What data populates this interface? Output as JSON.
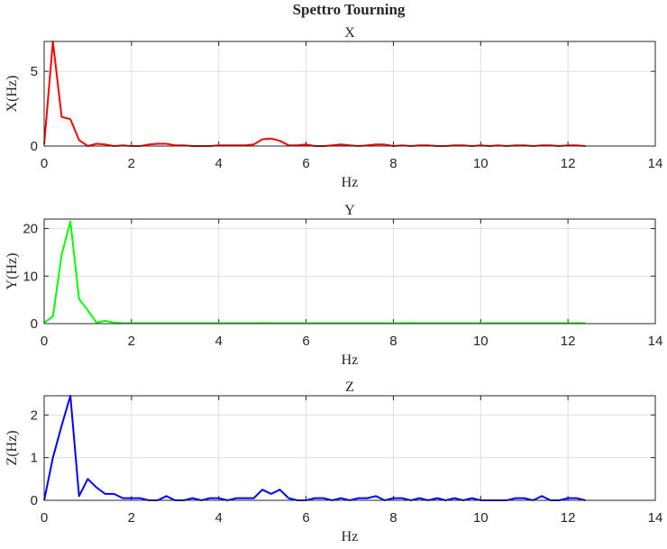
{
  "figure_title": "Spettro Tourning",
  "chart_data": [
    {
      "type": "line",
      "title": "X",
      "xlabel": "Hz",
      "ylabel": "X(Hz)",
      "xlim": [
        0,
        14
      ],
      "ylim": [
        0,
        7
      ],
      "xticks": [
        "0",
        "2",
        "4",
        "6",
        "8",
        "10",
        "12",
        "14"
      ],
      "yticks": [
        "0",
        "5"
      ],
      "grid": true,
      "series": [
        {
          "color": "#ff0000",
          "x": [
            0,
            0.2,
            0.4,
            0.6,
            0.8,
            1.0,
            1.2,
            1.4,
            1.6,
            1.8,
            2.0,
            2.2,
            2.4,
            2.6,
            2.8,
            3.0,
            3.2,
            3.4,
            3.6,
            3.8,
            4.0,
            4.2,
            4.4,
            4.6,
            4.8,
            5.0,
            5.2,
            5.4,
            5.6,
            5.8,
            6.0,
            6.2,
            6.4,
            6.6,
            6.8,
            7.0,
            7.2,
            7.4,
            7.6,
            7.8,
            8.0,
            8.2,
            8.4,
            8.6,
            8.8,
            9.0,
            9.2,
            9.4,
            9.6,
            9.8,
            10.0,
            10.2,
            10.4,
            10.6,
            10.8,
            11.0,
            11.2,
            11.4,
            11.6,
            11.8,
            12.0,
            12.2,
            12.4
          ],
          "y": [
            0.1,
            7.0,
            1.95,
            1.8,
            0.4,
            0.0,
            0.15,
            0.1,
            0.0,
            0.05,
            0.0,
            0.0,
            0.1,
            0.15,
            0.15,
            0.05,
            0.05,
            0.0,
            0.0,
            0.0,
            0.05,
            0.05,
            0.05,
            0.05,
            0.1,
            0.45,
            0.5,
            0.35,
            0.05,
            0.05,
            0.1,
            0.0,
            0.0,
            0.05,
            0.1,
            0.05,
            0.0,
            0.05,
            0.1,
            0.1,
            0.0,
            0.05,
            0.0,
            0.05,
            0.05,
            0.0,
            0.0,
            0.05,
            0.05,
            0.0,
            0.05,
            0.0,
            0.05,
            0.0,
            0.05,
            0.05,
            0.0,
            0.05,
            0.05,
            0.0,
            0.05,
            0.05,
            0.0
          ]
        }
      ]
    },
    {
      "type": "line",
      "title": "Y",
      "xlabel": "Hz",
      "ylabel": "Y(Hz)",
      "xlim": [
        0,
        14
      ],
      "ylim": [
        0,
        22
      ],
      "xticks": [
        "0",
        "2",
        "4",
        "6",
        "8",
        "10",
        "12",
        "14"
      ],
      "yticks": [
        "0",
        "10",
        "20"
      ],
      "grid": true,
      "series": [
        {
          "color": "#00ff00",
          "x": [
            0,
            0.2,
            0.4,
            0.6,
            0.8,
            1.0,
            1.2,
            1.4,
            1.6,
            1.8,
            2.0,
            2.2,
            2.4,
            2.6,
            2.8,
            3.0,
            3.2,
            3.4,
            3.6,
            3.8,
            4.0,
            4.2,
            4.4,
            4.6,
            4.8,
            5.0,
            5.2,
            5.4,
            5.6,
            5.8,
            6.0,
            6.2,
            6.4,
            6.6,
            6.8,
            7.0,
            7.2,
            7.4,
            7.6,
            7.8,
            8.0,
            8.2,
            8.4,
            8.6,
            8.8,
            9.0,
            9.2,
            9.4,
            9.6,
            9.8,
            10.0,
            10.2,
            10.4,
            10.6,
            10.8,
            11.0,
            11.2,
            11.4,
            11.6,
            11.8,
            12.0,
            12.2,
            12.4
          ],
          "y": [
            0.2,
            1.5,
            14.5,
            21.5,
            5.2,
            2.8,
            0.2,
            0.6,
            0.2,
            0.1,
            0.1,
            0.1,
            0.1,
            0.1,
            0.1,
            0.1,
            0.1,
            0.1,
            0.1,
            0.1,
            0.1,
            0.1,
            0.1,
            0.1,
            0.1,
            0.15,
            0.1,
            0.1,
            0.1,
            0.1,
            0.1,
            0.1,
            0.1,
            0.1,
            0.1,
            0.1,
            0.1,
            0.1,
            0.1,
            0.1,
            0.1,
            0.1,
            0.15,
            0.1,
            0.1,
            0.1,
            0.1,
            0.1,
            0.1,
            0.1,
            0.1,
            0.1,
            0.1,
            0.1,
            0.1,
            0.1,
            0.1,
            0.1,
            0.1,
            0.1,
            0.1,
            0.1,
            0.1
          ]
        }
      ]
    },
    {
      "type": "line",
      "title": "Z",
      "xlabel": "Hz",
      "ylabel": "Z(Hz)",
      "xlim": [
        0,
        14
      ],
      "ylim": [
        0,
        2.45
      ],
      "xticks": [
        "0",
        "2",
        "4",
        "6",
        "8",
        "10",
        "12",
        "14"
      ],
      "yticks": [
        "0",
        "1",
        "2"
      ],
      "grid": true,
      "series": [
        {
          "color": "#0000ff",
          "x": [
            0,
            0.2,
            0.4,
            0.6,
            0.8,
            1.0,
            1.2,
            1.4,
            1.6,
            1.8,
            2.0,
            2.2,
            2.4,
            2.6,
            2.8,
            3.0,
            3.2,
            3.4,
            3.6,
            3.8,
            4.0,
            4.2,
            4.4,
            4.6,
            4.8,
            5.0,
            5.2,
            5.4,
            5.6,
            5.8,
            6.0,
            6.2,
            6.4,
            6.6,
            6.8,
            7.0,
            7.2,
            7.4,
            7.6,
            7.8,
            8.0,
            8.2,
            8.4,
            8.6,
            8.8,
            9.0,
            9.2,
            9.4,
            9.6,
            9.8,
            10.0,
            10.2,
            10.4,
            10.6,
            10.8,
            11.0,
            11.2,
            11.4,
            11.6,
            11.8,
            12.0,
            12.2,
            12.4
          ],
          "y": [
            0.0,
            1.0,
            1.75,
            2.45,
            0.1,
            0.5,
            0.3,
            0.15,
            0.15,
            0.05,
            0.05,
            0.05,
            0.0,
            0.0,
            0.1,
            0.0,
            0.0,
            0.05,
            0.0,
            0.05,
            0.05,
            0.0,
            0.05,
            0.05,
            0.05,
            0.25,
            0.15,
            0.25,
            0.05,
            0.0,
            0.0,
            0.05,
            0.05,
            0.0,
            0.05,
            0.0,
            0.05,
            0.05,
            0.1,
            0.0,
            0.05,
            0.05,
            0.0,
            0.05,
            0.0,
            0.05,
            0.0,
            0.05,
            0.0,
            0.05,
            0.0,
            0.0,
            0.0,
            0.0,
            0.05,
            0.05,
            0.0,
            0.1,
            0.0,
            0.0,
            0.05,
            0.05,
            0.0
          ]
        }
      ]
    }
  ]
}
